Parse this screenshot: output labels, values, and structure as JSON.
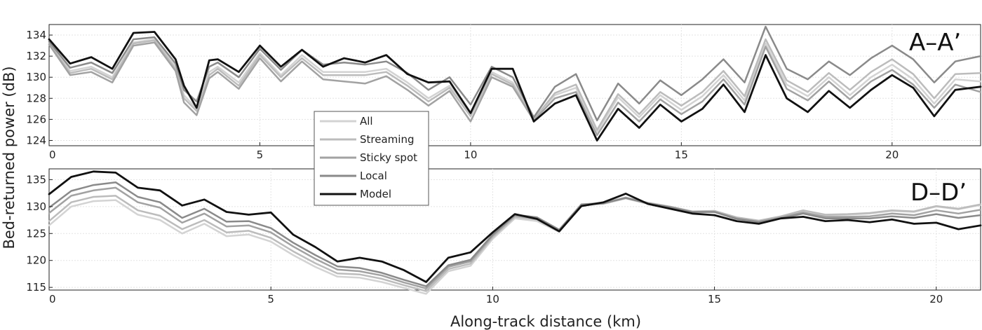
{
  "figure": {
    "ylabel": "Bed-returned power (dB)",
    "xlabel": "Along-track distance (km)"
  },
  "legend": {
    "placement": "center-left, overlapping both panels",
    "entries": [
      {
        "name": "All",
        "color": "#d3d3d3"
      },
      {
        "name": "Streaming",
        "color": "#bcbcbc"
      },
      {
        "name": "Sticky spot",
        "color": "#a2a2a2"
      },
      {
        "name": "Local",
        "color": "#8a8a8a"
      },
      {
        "name": "Model",
        "color": "#111111"
      }
    ]
  },
  "chart_data": [
    {
      "type": "line",
      "panel_label": "A–A’",
      "xlim": [
        0,
        22.1
      ],
      "ylim": [
        123.5,
        135
      ],
      "xticks": [
        0,
        5,
        10,
        15,
        20
      ],
      "yticks": [
        124,
        126,
        128,
        130,
        132,
        134
      ],
      "grid": true,
      "x": [
        0,
        0.5,
        1,
        1.5,
        2,
        2.5,
        3,
        3.2,
        3.5,
        3.8,
        4,
        4.5,
        5,
        5.5,
        6,
        6.5,
        7,
        7.5,
        8,
        8.5,
        9,
        9.5,
        10,
        10.5,
        11,
        11.5,
        12,
        12.5,
        13,
        13.5,
        14,
        14.5,
        15,
        15.5,
        16,
        16.5,
        17,
        17.5,
        18,
        18.5,
        19,
        19.5,
        20,
        20.5,
        21,
        21.5,
        22.1
      ],
      "series": [
        {
          "name": "All",
          "color": "#d3d3d3",
          "width": 2.5,
          "values": [
            133.3,
            130.6,
            131.0,
            130.0,
            133.3,
            133.6,
            131.0,
            128.3,
            127.0,
            130.5,
            131.0,
            129.5,
            132.3,
            130.2,
            132.1,
            130.5,
            130.5,
            130.5,
            130.8,
            129.5,
            128.0,
            129.2,
            126.6,
            130.5,
            129.5,
            126.1,
            128.3,
            129.0,
            124.8,
            128.1,
            126.2,
            128.3,
            126.9,
            128.2,
            130.2,
            127.8,
            133.2,
            129.3,
            128.2,
            130.0,
            128.3,
            130.0,
            131.2,
            129.8,
            127.5,
            129.8,
            129.6
          ]
        },
        {
          "name": "Streaming",
          "color": "#bcbcbc",
          "width": 2.5,
          "values": [
            133.2,
            130.4,
            130.8,
            129.8,
            133.2,
            133.5,
            130.8,
            128.0,
            126.8,
            130.2,
            130.8,
            129.2,
            132.1,
            130.0,
            131.8,
            130.2,
            130.2,
            130.2,
            130.5,
            129.2,
            127.7,
            129.0,
            126.3,
            130.3,
            129.3,
            126.0,
            128.5,
            129.3,
            125.0,
            128.4,
            126.5,
            128.6,
            127.3,
            128.6,
            130.6,
            128.2,
            133.6,
            129.7,
            128.6,
            130.4,
            128.8,
            130.5,
            131.7,
            130.3,
            128.0,
            130.3,
            130.4
          ]
        },
        {
          "name": "Sticky spot",
          "color": "#a2a2a2",
          "width": 2.5,
          "values": [
            133.1,
            130.2,
            130.5,
            129.5,
            133.0,
            133.3,
            130.6,
            127.6,
            126.4,
            129.9,
            130.5,
            128.9,
            131.8,
            129.6,
            131.5,
            129.8,
            129.6,
            129.4,
            130.1,
            128.8,
            127.3,
            128.7,
            125.8,
            130.0,
            129.1,
            125.9,
            128.0,
            128.6,
            124.5,
            127.6,
            125.8,
            127.9,
            126.5,
            127.7,
            129.8,
            127.4,
            132.9,
            128.9,
            127.8,
            129.6,
            127.9,
            129.6,
            130.7,
            129.3,
            127.1,
            129.3,
            128.6
          ]
        },
        {
          "name": "Local",
          "color": "#8a8a8a",
          "width": 2.5,
          "values": [
            133.4,
            130.9,
            131.4,
            130.4,
            133.6,
            133.8,
            131.3,
            128.8,
            127.7,
            131.0,
            131.4,
            130.0,
            132.7,
            130.7,
            132.6,
            131.2,
            131.4,
            131.2,
            131.5,
            130.4,
            128.8,
            130.0,
            127.4,
            131.0,
            130.0,
            126.2,
            129.1,
            130.3,
            125.9,
            129.4,
            127.5,
            129.7,
            128.3,
            129.8,
            131.7,
            129.5,
            134.8,
            130.8,
            129.8,
            131.5,
            130.2,
            131.8,
            133.0,
            131.7,
            129.5,
            131.5,
            132.0
          ]
        },
        {
          "name": "Model",
          "color": "#111111",
          "width": 2.8,
          "values": [
            133.6,
            131.3,
            131.9,
            130.8,
            134.2,
            134.3,
            131.7,
            129.2,
            127.1,
            131.6,
            131.7,
            130.5,
            133.0,
            131.0,
            132.6,
            131.0,
            131.8,
            131.4,
            132.1,
            130.3,
            129.5,
            129.6,
            126.6,
            130.8,
            130.8,
            125.8,
            127.5,
            128.3,
            124.0,
            127.0,
            125.2,
            127.4,
            125.8,
            127.0,
            129.3,
            126.7,
            132.1,
            128.0,
            126.7,
            128.7,
            127.1,
            128.8,
            130.2,
            129.0,
            126.3,
            128.8,
            129.1
          ]
        }
      ]
    },
    {
      "type": "line",
      "panel_label": "D–D’",
      "xlim": [
        0,
        21
      ],
      "ylim": [
        114.5,
        137
      ],
      "xticks": [
        0,
        5,
        10,
        15,
        20
      ],
      "yticks": [
        115,
        120,
        125,
        130,
        135
      ],
      "grid": true,
      "x": [
        0,
        0.5,
        1,
        1.5,
        2,
        2.5,
        3,
        3.5,
        4,
        4.5,
        5,
        5.5,
        6,
        6.5,
        7,
        7.5,
        8,
        8.5,
        9,
        9.5,
        10,
        10.5,
        11,
        11.5,
        12,
        12.5,
        13,
        13.5,
        14,
        14.5,
        15,
        15.5,
        16,
        16.5,
        17,
        17.5,
        18,
        18.5,
        19,
        19.5,
        20,
        20.5,
        21
      ],
      "series": [
        {
          "name": "All",
          "color": "#d3d3d3",
          "width": 2.5,
          "values": [
            126.5,
            130.0,
            131.0,
            131.2,
            128.5,
            127.5,
            125.0,
            126.8,
            124.5,
            124.8,
            123.5,
            121.0,
            118.8,
            117.0,
            116.8,
            116.0,
            114.9,
            113.8,
            118.0,
            119.0,
            124.0,
            127.8,
            127.3,
            125.3,
            130.2,
            130.5,
            131.5,
            130.5,
            129.8,
            128.9,
            129.0,
            127.8,
            127.2,
            128.0,
            129.1,
            128.4,
            128.5,
            128.7,
            129.2,
            129.0,
            130.0,
            129.5,
            130.3
          ]
        },
        {
          "name": "Streaming",
          "color": "#bcbcbc",
          "width": 2.5,
          "values": [
            127.3,
            130.8,
            131.8,
            132.0,
            129.3,
            128.3,
            125.8,
            127.5,
            125.2,
            125.5,
            124.2,
            121.7,
            119.5,
            117.6,
            117.4,
            116.6,
            115.4,
            114.3,
            118.4,
            119.4,
            124.3,
            128.1,
            127.6,
            125.5,
            130.4,
            130.7,
            131.7,
            130.7,
            130.0,
            129.1,
            129.2,
            128.0,
            127.4,
            128.2,
            129.3,
            128.5,
            128.6,
            128.8,
            129.3,
            129.1,
            130.1,
            129.6,
            130.4
          ]
        },
        {
          "name": "Sticky spot",
          "color": "#a2a2a2",
          "width": 2.5,
          "values": [
            128.8,
            132.0,
            133.0,
            133.5,
            130.8,
            129.8,
            127.0,
            128.7,
            126.3,
            126.5,
            125.2,
            122.6,
            120.3,
            118.3,
            118.0,
            117.2,
            115.9,
            114.8,
            118.8,
            119.8,
            124.6,
            128.3,
            127.8,
            125.6,
            130.3,
            130.6,
            131.6,
            130.6,
            129.9,
            129.0,
            129.0,
            127.8,
            127.2,
            128.0,
            128.9,
            128.1,
            128.1,
            128.2,
            128.7,
            128.4,
            129.3,
            128.7,
            129.4
          ]
        },
        {
          "name": "Local",
          "color": "#8a8a8a",
          "width": 2.5,
          "values": [
            129.8,
            132.9,
            134.0,
            134.5,
            131.8,
            130.8,
            127.9,
            129.6,
            127.2,
            127.3,
            126.0,
            123.3,
            121.0,
            118.9,
            118.6,
            117.7,
            116.4,
            115.2,
            119.1,
            120.1,
            124.8,
            128.5,
            128.0,
            125.7,
            130.4,
            130.6,
            131.6,
            130.6,
            129.9,
            129.0,
            129.0,
            127.7,
            127.1,
            127.8,
            128.7,
            127.8,
            127.8,
            127.8,
            128.2,
            127.9,
            128.6,
            127.9,
            128.4
          ]
        },
        {
          "name": "Model",
          "color": "#111111",
          "width": 2.8,
          "values": [
            132.3,
            135.5,
            136.5,
            136.3,
            133.5,
            133.0,
            130.2,
            131.3,
            129.0,
            128.5,
            128.9,
            124.8,
            122.5,
            119.8,
            120.5,
            119.8,
            118.2,
            116.0,
            120.5,
            121.5,
            125.2,
            128.6,
            127.7,
            125.4,
            130.1,
            130.8,
            132.4,
            130.5,
            129.6,
            128.7,
            128.4,
            127.3,
            126.8,
            127.8,
            128.1,
            127.3,
            127.5,
            127.1,
            127.6,
            126.8,
            127.0,
            125.8,
            126.5
          ]
        }
      ]
    }
  ]
}
